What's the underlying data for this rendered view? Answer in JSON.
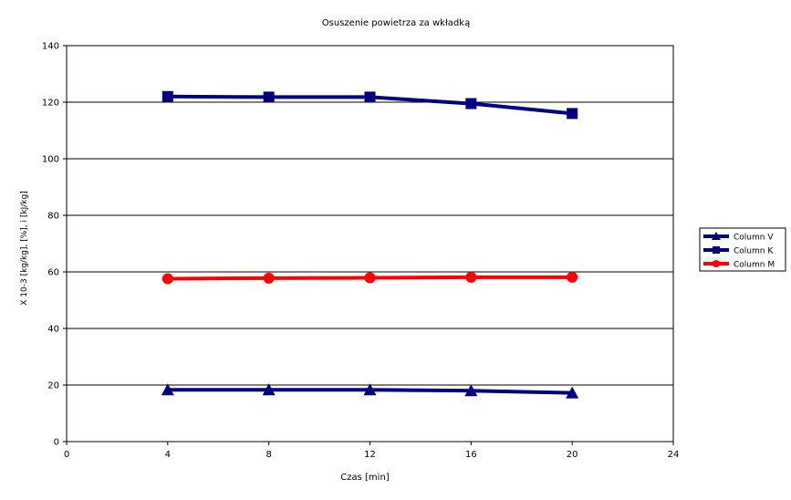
{
  "chart_data": {
    "type": "line",
    "title": "Osuszenie powietrza za wkładką",
    "xlabel": "Czas [min]",
    "ylabel": "X   10-3 [kg/kg],    [%],  i [kJ/kg]",
    "xlim": [
      0,
      24
    ],
    "ylim": [
      0,
      140
    ],
    "x_ticks": [
      "0",
      "4",
      "8",
      "12",
      "16",
      "20",
      "24"
    ],
    "y_ticks": [
      "0",
      "20",
      "40",
      "60",
      "80",
      "100",
      "120",
      "140"
    ],
    "grid": "horizontal",
    "legend_position": "right",
    "series": [
      {
        "name": "Column V",
        "color": "#000080",
        "marker": "triangle",
        "x": [
          4,
          8,
          12,
          16,
          20
        ],
        "values": [
          18.3,
          18.3,
          18.3,
          18.0,
          17.2
        ]
      },
      {
        "name": "Column K",
        "color": "#000080",
        "marker": "square",
        "x": [
          4,
          8,
          12,
          16,
          20
        ],
        "values": [
          122.0,
          121.8,
          121.8,
          119.5,
          116.0
        ]
      },
      {
        "name": "Column M",
        "color": "#ff0000",
        "marker": "circle",
        "x": [
          4,
          8,
          12,
          16,
          20
        ],
        "values": [
          57.6,
          57.8,
          57.9,
          58.1,
          58.1
        ]
      }
    ]
  }
}
